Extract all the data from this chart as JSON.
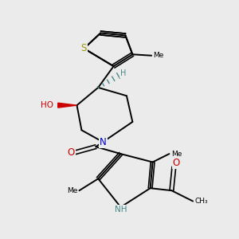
{
  "bg_color": "#ebebeb",
  "figsize": [
    3.0,
    3.0
  ],
  "dpi": 100,
  "bond_color": "#000000",
  "bond_lw": 1.4,
  "s_color": "#999900",
  "n_color": "#0000cc",
  "o_color": "#cc0000",
  "teal_color": "#448888",
  "font_size": 7.5,
  "xlim": [
    0,
    10
  ],
  "ylim": [
    0,
    10
  ]
}
